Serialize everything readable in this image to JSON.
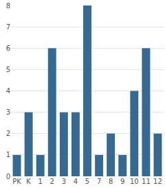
{
  "chart_data": {
    "type": "bar",
    "categories": [
      "PK",
      "K",
      "1",
      "2",
      "3",
      "4",
      "5",
      "7",
      "8",
      "9",
      "10",
      "11",
      "12"
    ],
    "values": [
      1,
      3,
      1,
      6,
      3,
      3,
      8,
      1,
      2,
      1,
      4,
      6,
      2
    ],
    "color": "#366a92",
    "ylim": [
      0,
      8
    ],
    "yticks": [
      0,
      1,
      2,
      3,
      4,
      5,
      6,
      7,
      8
    ],
    "grid": true
  }
}
